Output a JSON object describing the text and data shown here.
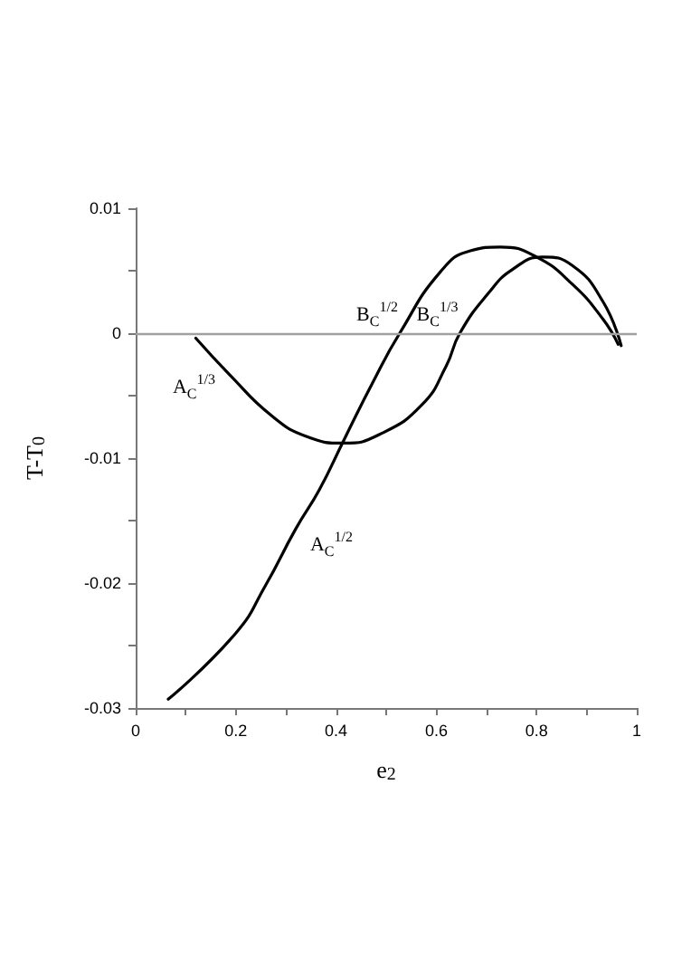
{
  "chart_data": {
    "type": "line",
    "xlabel": "e$_{2}$",
    "ylabel": "T-T$_{0}$",
    "series": [
      {
        "color": "#000000",
        "x": [
          0.065,
          0.2,
          0.259,
          0.319,
          0.367,
          0.415,
          0.475,
          0.527,
          0.608,
          0.668,
          0.728,
          0.8,
          0.872,
          0.933,
          0.963
        ],
        "values": [
          -0.0293,
          -0.024,
          -0.0202,
          -0.0157,
          -0.0125,
          -0.0086,
          -0.0038,
          0,
          0.0049,
          0.0066,
          0.0069,
          0.0061,
          0.0039,
          0.0011,
          -0.0009
        ]
      },
      {
        "color": "#000000",
        "x": [
          0.12,
          0.187,
          0.271,
          0.343,
          0.415,
          0.487,
          0.572,
          0.62,
          0.647,
          0.704,
          0.752,
          0.812,
          0.872,
          0.933,
          0.969
        ],
        "values": [
          -0.0004,
          -0.0033,
          -0.0066,
          -0.0083,
          -0.0088,
          -0.0081,
          -0.0057,
          -0.0026,
          0,
          0.0032,
          0.0051,
          0.0061,
          0.0054,
          0.0025,
          -0.001
        ]
      }
    ],
    "xlim": [
      0,
      1
    ],
    "ylim": [
      -0.03,
      0.01
    ],
    "xticks": [
      0,
      {
        "value": 0.1,
        "label": null
      },
      0.2,
      {
        "value": 0.3,
        "label": null
      },
      0.4,
      {
        "value": 0.5,
        "label": null
      },
      0.6,
      {
        "value": 0.7,
        "label": null
      },
      0.8,
      {
        "value": 0.9,
        "label": null
      },
      1
    ],
    "yticks": [
      -0.03,
      {
        "value": -0.025,
        "label": null
      },
      -0.02,
      {
        "value": -0.015,
        "label": null
      },
      -0.01,
      {
        "value": -0.005,
        "label": null
      },
      0,
      {
        "value": 0.005,
        "label": null
      },
      0.01
    ],
    "ref_lines": [
      {
        "axis": "y",
        "value": 0,
        "color": "#a0a0a0"
      }
    ],
    "annotations": [
      "A$_{C}$$^{1/3}$",
      "A$_{C}$$^{1/2}$",
      {
        "text": "B$_{C}$$^{1/2}$",
        "x": 0.527,
        "y": 0
      },
      {
        "text": "B$_{C}$$^{1/3}$",
        "x": 0.647,
        "y": 0
      }
    ],
    "grid": false,
    "marker": "none",
    "line_style": "solid"
  }
}
